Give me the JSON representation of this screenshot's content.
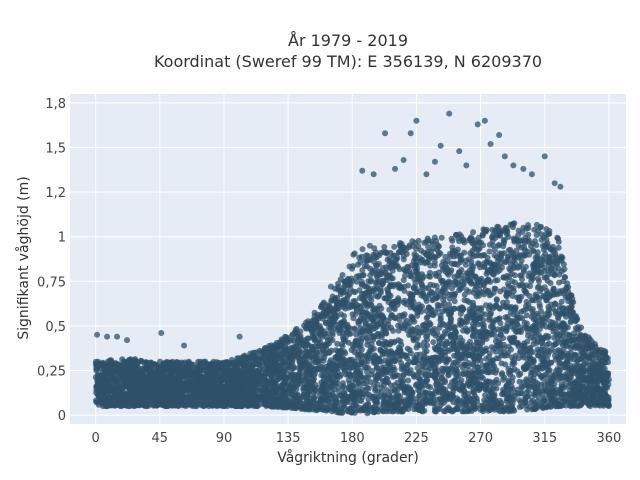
{
  "chart_data": {
    "type": "scatter",
    "title_line1": "År 1979 - 2019",
    "title_line2": "Koordinat (Sweref 99 TM): E 356139, N 6209370",
    "xlabel": "Vågriktning (grader)",
    "ylabel": "Signifikant våghöjd (m)",
    "xlim": [
      -18,
      372
    ],
    "ylim": [
      -0.05,
      1.8
    ],
    "xticks": [
      0,
      45,
      90,
      135,
      180,
      225,
      270,
      315,
      360
    ],
    "xtick_labels": [
      "0",
      "45",
      "90",
      "135",
      "180",
      "225",
      "270",
      "315",
      "360"
    ],
    "yticks": [
      0,
      0.25,
      0.5,
      0.75,
      1,
      1.25,
      1.5,
      1.75
    ],
    "ytick_labels": [
      "0",
      "0,25",
      "0,5",
      "0,75",
      "1",
      "1,2",
      "1,5",
      "1,8"
    ],
    "grid": true,
    "marker_color": "#2f5269",
    "marker_opacity": 0.75,
    "envelope_x": [
      0,
      20,
      45,
      70,
      90,
      100,
      120,
      135,
      150,
      165,
      172,
      180,
      190,
      200,
      215,
      230,
      245,
      260,
      275,
      290,
      305,
      315,
      325,
      332,
      340,
      350,
      360
    ],
    "envelope_ymin": [
      0.05,
      0.05,
      0.05,
      0.05,
      0.05,
      0.05,
      0.05,
      0.04,
      0.03,
      0.02,
      0.01,
      0.01,
      0.01,
      0.02,
      0.02,
      0.02,
      0.02,
      0.02,
      0.02,
      0.02,
      0.03,
      0.04,
      0.05,
      0.05,
      0.05,
      0.05,
      0.05
    ],
    "envelope_ymax": [
      0.3,
      0.32,
      0.3,
      0.3,
      0.3,
      0.32,
      0.38,
      0.45,
      0.55,
      0.68,
      0.78,
      0.9,
      0.95,
      0.95,
      0.97,
      1.0,
      1.0,
      1.02,
      1.05,
      1.08,
      1.08,
      1.05,
      1.0,
      0.72,
      0.5,
      0.4,
      0.35
    ],
    "outliers": [
      {
        "x": 1,
        "y": 0.45
      },
      {
        "x": 8,
        "y": 0.44
      },
      {
        "x": 15,
        "y": 0.44
      },
      {
        "x": 22,
        "y": 0.42
      },
      {
        "x": 46,
        "y": 0.46
      },
      {
        "x": 62,
        "y": 0.39
      },
      {
        "x": 101,
        "y": 0.44
      },
      {
        "x": 165,
        "y": 0.72
      },
      {
        "x": 187,
        "y": 1.37
      },
      {
        "x": 195,
        "y": 1.35
      },
      {
        "x": 203,
        "y": 1.58
      },
      {
        "x": 210,
        "y": 1.38
      },
      {
        "x": 216,
        "y": 1.43
      },
      {
        "x": 221,
        "y": 1.58
      },
      {
        "x": 225,
        "y": 1.65
      },
      {
        "x": 232,
        "y": 1.35
      },
      {
        "x": 238,
        "y": 1.42
      },
      {
        "x": 242,
        "y": 1.51
      },
      {
        "x": 248,
        "y": 1.69
      },
      {
        "x": 255,
        "y": 1.48
      },
      {
        "x": 260,
        "y": 1.4
      },
      {
        "x": 268,
        "y": 1.63
      },
      {
        "x": 273,
        "y": 1.65
      },
      {
        "x": 277,
        "y": 1.52
      },
      {
        "x": 283,
        "y": 1.57
      },
      {
        "x": 287,
        "y": 1.45
      },
      {
        "x": 293,
        "y": 1.4
      },
      {
        "x": 300,
        "y": 1.38
      },
      {
        "x": 306,
        "y": 1.35
      },
      {
        "x": 315,
        "y": 1.45
      },
      {
        "x": 322,
        "y": 1.3
      },
      {
        "x": 326,
        "y": 1.28
      }
    ]
  }
}
